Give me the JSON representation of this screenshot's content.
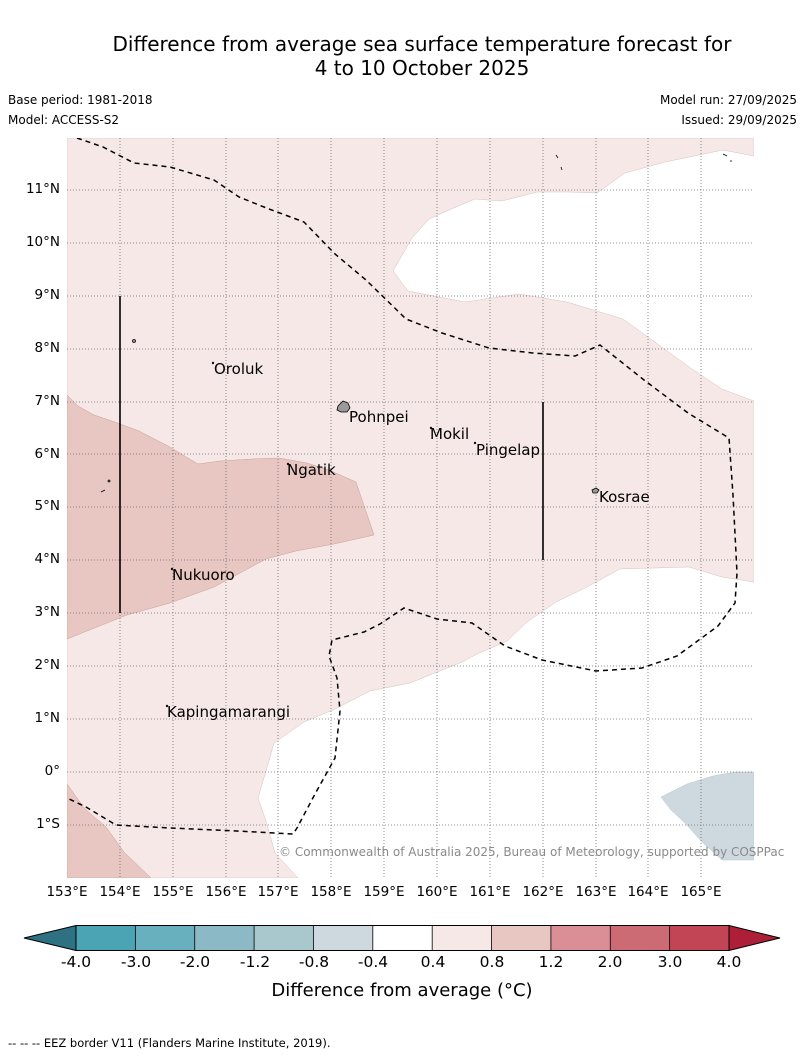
{
  "title": {
    "line1": "Difference from average sea surface temperature forecast for",
    "line2": "4 to 10 October 2025"
  },
  "meta": {
    "base_period": "Base period: 1981-2018",
    "model": "Model: ACCESS-S2",
    "model_run": "Model run: 27/09/2025",
    "issued": "Issued: 29/09/2025"
  },
  "map": {
    "lat_labels": [
      "11°N",
      "10°N",
      "9°N",
      "8°N",
      "7°N",
      "6°N",
      "5°N",
      "4°N",
      "3°N",
      "2°N",
      "1°N",
      "0°",
      "1°S"
    ],
    "lon_labels": [
      "153°E",
      "154°E",
      "155°E",
      "156°E",
      "157°E",
      "158°E",
      "159°E",
      "160°E",
      "161°E",
      "162°E",
      "163°E",
      "164°E",
      "165°E"
    ],
    "places": {
      "oroluk": "Oroluk",
      "pohnpei": "Pohnpei",
      "mokil": "Mokil",
      "pingelap": "Pingelap",
      "ngatik": "Ngatik",
      "kosrae": "Kosrae",
      "nukuoro": "Nukuoro",
      "kapingamarangi": "Kapingamarangi"
    },
    "copyright": "© Commonwealth of Australia 2025, Bureau of Meteorology, supported by COSPPac"
  },
  "colorbar": {
    "ticks": [
      "-4.0",
      "-3.0",
      "-2.0",
      "-1.2",
      "-0.8",
      "-0.4",
      "0.4",
      "0.8",
      "1.2",
      "2.0",
      "3.0",
      "4.0"
    ],
    "colors": [
      "#2e7183",
      "#4aa4b4",
      "#69b0bf",
      "#8bbac6",
      "#a8c8cd",
      "#cdd9de",
      "#ffffff",
      "#f5e8e7",
      "#e8c6c1",
      "#d98f95",
      "#cd6b74",
      "#c24555",
      "#ad1f38"
    ],
    "label": "Difference from average (°C)"
  },
  "footer": {
    "eez_note": "--  --  -- EEZ border V11 (Flanders Marine Institute, 2019)."
  }
}
